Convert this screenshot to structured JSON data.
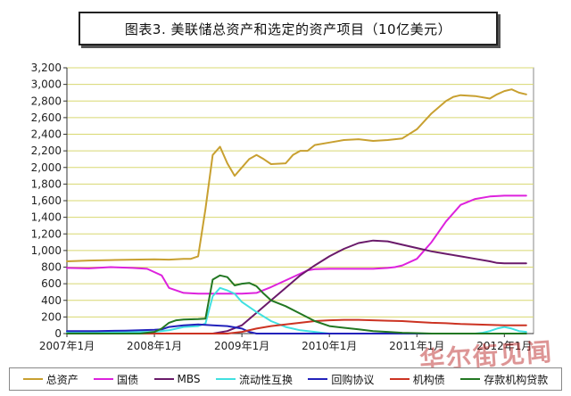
{
  "title": "图表3. 美联储总资产和选定的资产项目（10亿美元）",
  "watermark": "华尔街见闻",
  "chart_data": {
    "type": "line",
    "title": "图表3. 美联储总资产和选定的资产项目（10亿美元）",
    "xlabel": "",
    "ylabel": "",
    "ylim": [
      0,
      3200
    ],
    "yticks": [
      0,
      200,
      400,
      600,
      800,
      1000,
      1200,
      1400,
      1600,
      1800,
      2000,
      2200,
      2400,
      2600,
      2800,
      3000,
      3200
    ],
    "ytick_labels": [
      "0",
      "200",
      "400",
      "600",
      "800",
      "1,000",
      "1,200",
      "1,400",
      "1,600",
      "1,800",
      "2,000",
      "2,200",
      "2,400",
      "2,600",
      "2,800",
      "3,000",
      "3,200"
    ],
    "xlim": [
      0,
      64
    ],
    "xticks": [
      0,
      12,
      24,
      36,
      48,
      60
    ],
    "xtick_labels": [
      "2007年1月",
      "2008年1月",
      "2009年1月",
      "2010年1月",
      "2011年1月",
      "2012年1月"
    ],
    "grid": true,
    "legend_position": "bottom",
    "series": [
      {
        "name": "总资产",
        "color": "#c8a030",
        "x": [
          0,
          3,
          6,
          9,
          12,
          14,
          16,
          17,
          18,
          19,
          20,
          21,
          22,
          23,
          24,
          25,
          26,
          27,
          28,
          30,
          31,
          32,
          33,
          34,
          36,
          38,
          40,
          42,
          44,
          46,
          48,
          50,
          52,
          53,
          54,
          56,
          58,
          59,
          60,
          61,
          62,
          63
        ],
        "y": [
          870,
          880,
          885,
          890,
          895,
          890,
          900,
          900,
          930,
          1500,
          2150,
          2250,
          2050,
          1900,
          2000,
          2100,
          2150,
          2100,
          2040,
          2050,
          2150,
          2200,
          2200,
          2270,
          2300,
          2330,
          2340,
          2320,
          2330,
          2350,
          2460,
          2650,
          2800,
          2850,
          2870,
          2860,
          2830,
          2880,
          2920,
          2940,
          2900,
          2880
        ]
      },
      {
        "name": "国债",
        "color": "#dd22dd",
        "x": [
          0,
          3,
          6,
          9,
          11,
          12,
          13,
          14,
          16,
          18,
          20,
          22,
          24,
          26,
          28,
          30,
          32,
          33,
          34,
          36,
          38,
          40,
          42,
          44,
          45,
          46,
          48,
          50,
          52,
          54,
          56,
          58,
          60,
          62,
          63
        ],
        "y": [
          790,
          785,
          800,
          790,
          780,
          740,
          700,
          550,
          490,
          480,
          480,
          480,
          480,
          490,
          560,
          640,
          720,
          760,
          775,
          780,
          780,
          780,
          780,
          790,
          800,
          820,
          900,
          1100,
          1350,
          1550,
          1620,
          1650,
          1660,
          1660,
          1660
        ]
      },
      {
        "name": "MBS",
        "color": "#6a1a6a",
        "x": [
          0,
          20,
          22,
          24,
          26,
          28,
          30,
          32,
          34,
          36,
          38,
          40,
          42,
          44,
          46,
          48,
          50,
          52,
          54,
          56,
          58,
          59,
          60,
          62,
          63
        ],
        "y": [
          0,
          0,
          30,
          100,
          250,
          400,
          550,
          700,
          820,
          930,
          1020,
          1090,
          1120,
          1110,
          1070,
          1030,
          990,
          960,
          930,
          900,
          870,
          850,
          845,
          845,
          845
        ]
      },
      {
        "name": "流动性互换",
        "color": "#40e0e0",
        "x": [
          0,
          12,
          14,
          16,
          18,
          19,
          20,
          21,
          22,
          23,
          24,
          26,
          28,
          30,
          32,
          34,
          35,
          36,
          38,
          40,
          42,
          44,
          46,
          48,
          50,
          52,
          54,
          56,
          57,
          58,
          59,
          60,
          61,
          62,
          63
        ],
        "y": [
          20,
          20,
          40,
          80,
          90,
          120,
          450,
          550,
          520,
          480,
          380,
          260,
          150,
          80,
          40,
          20,
          10,
          0,
          0,
          0,
          0,
          0,
          0,
          0,
          0,
          0,
          0,
          0,
          10,
          30,
          60,
          80,
          60,
          30,
          20
        ]
      },
      {
        "name": "回购协议",
        "color": "#2222bb",
        "x": [
          0,
          4,
          8,
          10,
          12,
          13,
          14,
          16,
          18,
          20,
          22,
          24,
          25,
          26,
          28,
          30,
          36,
          44,
          52,
          63
        ],
        "y": [
          30,
          30,
          35,
          40,
          45,
          50,
          80,
          100,
          110,
          100,
          90,
          60,
          20,
          0,
          0,
          0,
          0,
          0,
          0,
          0
        ]
      },
      {
        "name": "机构债",
        "color": "#cc3322",
        "x": [
          0,
          22,
          24,
          26,
          28,
          30,
          32,
          34,
          36,
          38,
          40,
          42,
          44,
          46,
          48,
          50,
          52,
          54,
          56,
          58,
          60,
          62,
          63
        ],
        "y": [
          0,
          0,
          20,
          60,
          90,
          110,
          130,
          150,
          160,
          165,
          165,
          160,
          155,
          150,
          140,
          130,
          125,
          115,
          110,
          105,
          100,
          100,
          100
        ]
      },
      {
        "name": "存款机构贷款",
        "color": "#227722",
        "x": [
          0,
          10,
          12,
          13,
          14,
          15,
          16,
          18,
          19,
          20,
          21,
          22,
          23,
          24,
          25,
          26,
          27,
          28,
          30,
          32,
          34,
          36,
          38,
          40,
          42,
          44,
          46,
          48,
          50,
          52,
          56,
          60,
          63
        ],
        "y": [
          0,
          0,
          20,
          60,
          130,
          160,
          170,
          175,
          180,
          650,
          700,
          680,
          580,
          600,
          610,
          570,
          480,
          400,
          330,
          240,
          150,
          90,
          70,
          50,
          30,
          20,
          10,
          5,
          0,
          0,
          0,
          0,
          0
        ]
      }
    ]
  }
}
